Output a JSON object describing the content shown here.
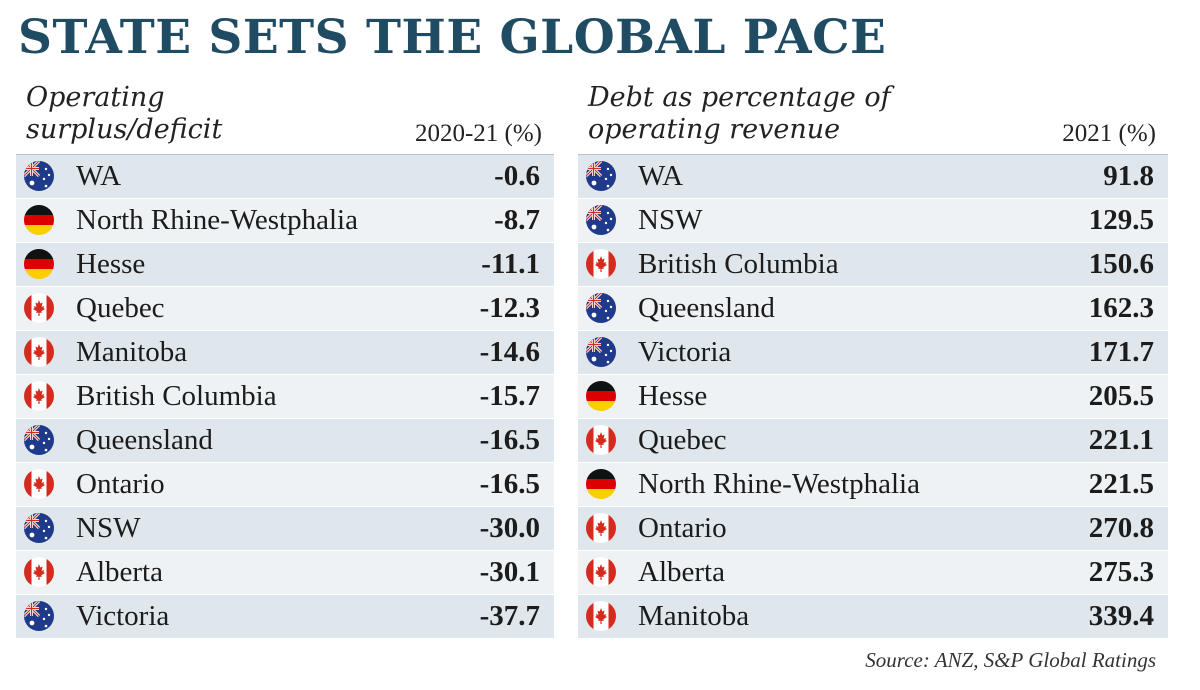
{
  "title": "STATE SETS THE GLOBAL PACE",
  "source": "Source: ANZ, S&P Global Ratings",
  "flag_icons": {
    "au": "australia-flag-icon",
    "de": "germany-flag-icon",
    "ca": "canada-flag-icon"
  },
  "chart_data": [
    {
      "type": "table",
      "title_lines": [
        "Operating",
        "surplus/deficit"
      ],
      "column_header": "2020-21 (%)",
      "rows": [
        {
          "flag": "au",
          "name": "WA",
          "value": "-0.6"
        },
        {
          "flag": "de",
          "name": "North Rhine-Westphalia",
          "value": "-8.7"
        },
        {
          "flag": "de",
          "name": "Hesse",
          "value": "-11.1"
        },
        {
          "flag": "ca",
          "name": "Quebec",
          "value": "-12.3"
        },
        {
          "flag": "ca",
          "name": "Manitoba",
          "value": "-14.6"
        },
        {
          "flag": "ca",
          "name": "British Columbia",
          "value": "-15.7"
        },
        {
          "flag": "au",
          "name": "Queensland",
          "value": "-16.5"
        },
        {
          "flag": "ca",
          "name": "Ontario",
          "value": "-16.5"
        },
        {
          "flag": "au",
          "name": "NSW",
          "value": "-30.0"
        },
        {
          "flag": "ca",
          "name": "Alberta",
          "value": "-30.1"
        },
        {
          "flag": "au",
          "name": "Victoria",
          "value": "-37.7"
        }
      ]
    },
    {
      "type": "table",
      "title_lines": [
        "Debt as percentage of",
        "operating revenue"
      ],
      "column_header": "2021 (%)",
      "rows": [
        {
          "flag": "au",
          "name": "WA",
          "value": "91.8"
        },
        {
          "flag": "au",
          "name": "NSW",
          "value": "129.5"
        },
        {
          "flag": "ca",
          "name": "British Columbia",
          "value": "150.6"
        },
        {
          "flag": "au",
          "name": "Queensland",
          "value": "162.3"
        },
        {
          "flag": "au",
          "name": "Victoria",
          "value": "171.7"
        },
        {
          "flag": "de",
          "name": "Hesse",
          "value": "205.5"
        },
        {
          "flag": "ca",
          "name": "Quebec",
          "value": "221.1"
        },
        {
          "flag": "de",
          "name": "North Rhine-Westphalia",
          "value": "221.5"
        },
        {
          "flag": "ca",
          "name": "Ontario",
          "value": "270.8"
        },
        {
          "flag": "ca",
          "name": "Alberta",
          "value": "275.3"
        },
        {
          "flag": "ca",
          "name": "Manitoba",
          "value": "339.4"
        }
      ]
    }
  ]
}
